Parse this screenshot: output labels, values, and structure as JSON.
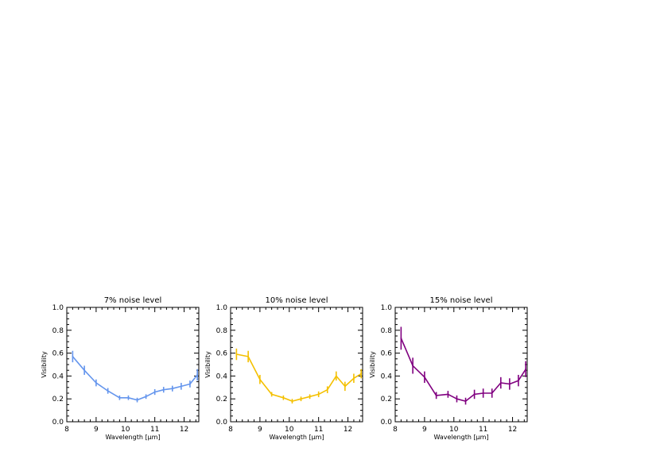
{
  "chart_data": [
    {
      "type": "line",
      "title": "7% noise level",
      "xlabel": "Wavelength [μm]",
      "ylabel": "Visibility",
      "xlim": [
        8,
        12.5
      ],
      "ylim": [
        0,
        1
      ],
      "xticks": [
        8,
        9,
        10,
        11,
        12
      ],
      "yticks": [
        0.0,
        0.2,
        0.4,
        0.6,
        0.8,
        1.0
      ],
      "xtick_labels": [
        "8",
        "9",
        "10",
        "11",
        "12"
      ],
      "ytick_labels": [
        "0.0",
        "0.2",
        "0.4",
        "0.6",
        "0.8",
        "1.0"
      ],
      "grid": false,
      "color": "#6495ed",
      "series": [
        {
          "x": [
            8.2,
            8.6,
            9.0,
            9.4,
            9.8,
            10.1,
            10.4,
            10.7,
            11.0,
            11.3,
            11.6,
            11.9,
            12.2,
            12.45
          ],
          "y": [
            0.57,
            0.45,
            0.34,
            0.27,
            0.21,
            0.21,
            0.19,
            0.22,
            0.26,
            0.28,
            0.29,
            0.31,
            0.33,
            0.41
          ],
          "err": [
            0.05,
            0.04,
            0.03,
            0.025,
            0.02,
            0.02,
            0.02,
            0.02,
            0.025,
            0.025,
            0.025,
            0.03,
            0.03,
            0.05
          ]
        }
      ]
    },
    {
      "type": "line",
      "title": "10% noise level",
      "xlabel": "Wavelength [μm]",
      "ylabel": "Visibility",
      "xlim": [
        8,
        12.5
      ],
      "ylim": [
        0,
        1
      ],
      "xticks": [
        8,
        9,
        10,
        11,
        12
      ],
      "yticks": [
        0.0,
        0.2,
        0.4,
        0.6,
        0.8,
        1.0
      ],
      "xtick_labels": [
        "8",
        "9",
        "10",
        "11",
        "12"
      ],
      "ytick_labels": [
        "0.0",
        "0.2",
        "0.4",
        "0.6",
        "0.8",
        "1.0"
      ],
      "grid": false,
      "color": "#f4c000",
      "series": [
        {
          "x": [
            8.2,
            8.6,
            9.0,
            9.4,
            9.8,
            10.1,
            10.4,
            10.7,
            11.0,
            11.3,
            11.6,
            11.9,
            12.2,
            12.45
          ],
          "y": [
            0.59,
            0.57,
            0.37,
            0.24,
            0.21,
            0.18,
            0.2,
            0.22,
            0.24,
            0.28,
            0.4,
            0.31,
            0.38,
            0.42
          ],
          "err": [
            0.05,
            0.05,
            0.04,
            0.02,
            0.02,
            0.02,
            0.02,
            0.02,
            0.025,
            0.03,
            0.04,
            0.04,
            0.04,
            0.04
          ]
        }
      ]
    },
    {
      "type": "line",
      "title": "15% noise level",
      "xlabel": "Wavelength [μm]",
      "ylabel": "Visibility",
      "xlim": [
        8,
        12.5
      ],
      "ylim": [
        0,
        1
      ],
      "xticks": [
        8,
        9,
        10,
        11,
        12
      ],
      "yticks": [
        0.0,
        0.2,
        0.4,
        0.6,
        0.8,
        1.0
      ],
      "xtick_labels": [
        "8",
        "9",
        "10",
        "11",
        "12"
      ],
      "ytick_labels": [
        "0.0",
        "0.2",
        "0.4",
        "0.6",
        "0.8",
        "1.0"
      ],
      "grid": false,
      "color": "#800080",
      "series": [
        {
          "x": [
            8.2,
            8.6,
            9.0,
            9.4,
            9.8,
            10.1,
            10.4,
            10.7,
            11.0,
            11.3,
            11.6,
            11.9,
            12.2,
            12.45
          ],
          "y": [
            0.73,
            0.49,
            0.39,
            0.23,
            0.24,
            0.2,
            0.18,
            0.24,
            0.25,
            0.25,
            0.34,
            0.33,
            0.36,
            0.46
          ],
          "err": [
            0.1,
            0.07,
            0.05,
            0.03,
            0.03,
            0.03,
            0.03,
            0.04,
            0.04,
            0.04,
            0.05,
            0.05,
            0.05,
            0.07
          ]
        }
      ]
    }
  ]
}
